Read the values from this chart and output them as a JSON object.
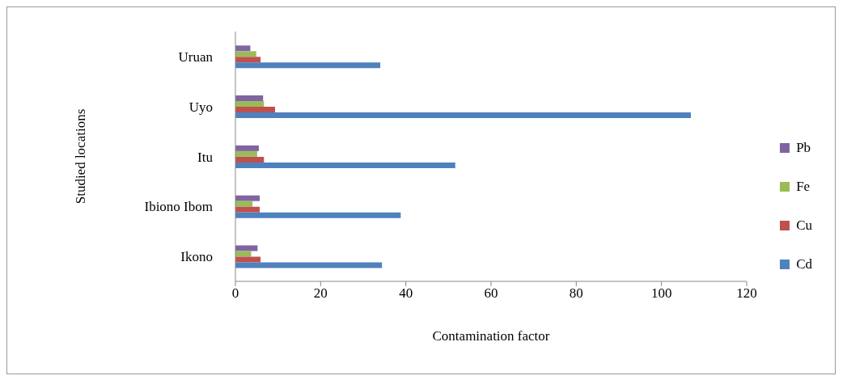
{
  "chart_data": {
    "type": "bar",
    "orientation": "horizontal",
    "xlabel": "Contamination factor",
    "ylabel": "Studied locations",
    "categories": [
      "Uruan",
      "Uyo",
      "Itu",
      "Ibiono Ibom",
      "Ikono"
    ],
    "series": [
      {
        "name": "Cd",
        "color": "#4f81bd",
        "values": [
          34.0,
          106.9,
          51.6,
          38.8,
          34.4
        ]
      },
      {
        "name": "Cu",
        "color": "#c0504d",
        "values": [
          5.9,
          9.3,
          6.7,
          5.7,
          5.9
        ]
      },
      {
        "name": "Fe",
        "color": "#9bbb59",
        "values": [
          4.9,
          6.7,
          5.1,
          4.0,
          3.7
        ]
      },
      {
        "name": "Pb",
        "color": "#8064a2",
        "values": [
          3.5,
          6.5,
          5.5,
          5.7,
          5.2
        ]
      }
    ],
    "xlim": [
      0,
      120
    ],
    "xticks": [
      0,
      20,
      40,
      60,
      80,
      100,
      120
    ],
    "legend": "right"
  }
}
